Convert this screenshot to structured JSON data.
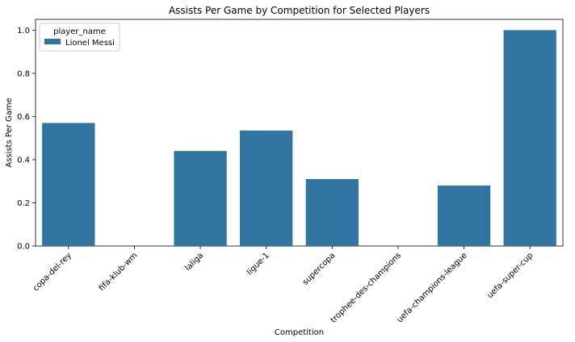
{
  "chart_data": {
    "type": "bar",
    "title": "Assists Per Game by Competition for Selected Players",
    "xlabel": "Competition",
    "ylabel": "Assists Per Game",
    "categories": [
      "copa-del-rey",
      "fifa-klub-wm",
      "laliga",
      "ligue-1",
      "supercopa",
      "trophee-des-champions",
      "uefa-champions-league",
      "uefa-super-cup"
    ],
    "series": [
      {
        "name": "Lionel Messi",
        "color": "#3274a1",
        "values": [
          0.57,
          0.0,
          0.44,
          0.535,
          0.31,
          0.0,
          0.28,
          1.0
        ]
      }
    ],
    "ylim": [
      0,
      1.05
    ],
    "yticks": [
      "0.0",
      "0.2",
      "0.4",
      "0.6",
      "0.8",
      "1.0"
    ],
    "grid": false,
    "legend": {
      "title": "player_name",
      "placement": "top-left"
    }
  }
}
